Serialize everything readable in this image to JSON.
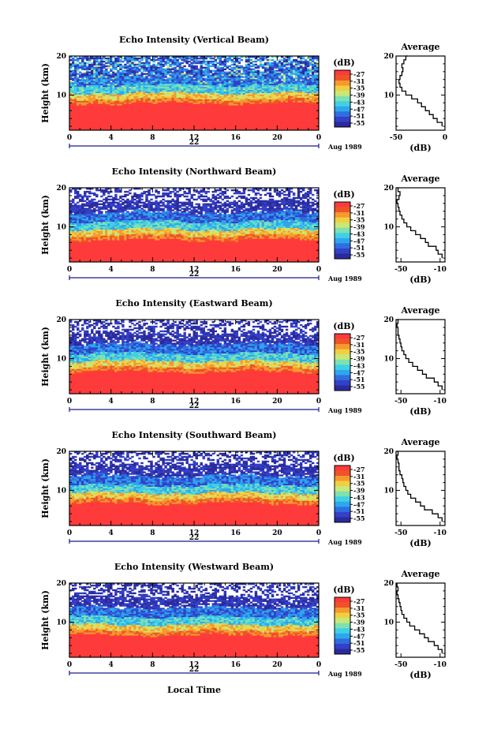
{
  "figure": {
    "xlabel": "Local Time",
    "date_label": "Aug 1989",
    "day_label": "22",
    "colorbar_unit": "(dB)",
    "colorbar_ticks": [
      "-27",
      "-31",
      "-35",
      "-39",
      "-43",
      "-47",
      "-51",
      "-55"
    ],
    "colors": [
      "#2b2a9c",
      "#3340c8",
      "#2e6fe0",
      "#2ea6ee",
      "#3fd0e6",
      "#7fe0b0",
      "#c8e87a",
      "#f0d040",
      "#f59a2e",
      "#ee5428",
      "#ff3a3a"
    ]
  },
  "chart_data": [
    {
      "type": "heatmap",
      "title": "Echo Intensity (Vertical Beam)",
      "ylabel": "Height (km)",
      "xlim": [
        0,
        24
      ],
      "ylim": [
        1,
        20
      ],
      "x_ticks": [
        "0",
        "4",
        "8",
        "12",
        "16",
        "20",
        "0"
      ],
      "y_ticks": [
        "10",
        "20"
      ],
      "clim": [
        -55,
        -27
      ],
      "profile": {
        "title": "Average",
        "xlabel": "(dB)",
        "x_ticks": [
          "-50",
          "0"
        ],
        "xlim": [
          -50,
          0
        ],
        "heights": [
          2,
          3,
          4,
          5,
          6,
          7,
          8,
          9,
          10,
          11,
          12,
          13,
          14,
          15,
          16,
          17,
          18,
          19,
          20
        ],
        "values": [
          -3,
          -8,
          -12,
          -16,
          -20,
          -24,
          -28,
          -34,
          -40,
          -44,
          -46,
          -47,
          -46,
          -44,
          -43,
          -44,
          -42,
          -40,
          -38
        ]
      }
    },
    {
      "type": "heatmap",
      "title": "Echo Intensity (Northward Beam)",
      "ylabel": "Height (km)",
      "xlim": [
        0,
        24
      ],
      "ylim": [
        1,
        20
      ],
      "x_ticks": [
        "0",
        "4",
        "8",
        "12",
        "16",
        "20",
        "0"
      ],
      "y_ticks": [
        "10",
        "20"
      ],
      "clim": [
        -55,
        -27
      ],
      "profile": {
        "title": "Average",
        "xlabel": "(dB)",
        "x_ticks": [
          "-50",
          "-10"
        ],
        "xlim": [
          -55,
          -5
        ],
        "heights": [
          2,
          3,
          4,
          5,
          6,
          7,
          8,
          9,
          10,
          11,
          12,
          13,
          14,
          15,
          16,
          17,
          18,
          19,
          20
        ],
        "values": [
          -8,
          -12,
          -14,
          -22,
          -25,
          -30,
          -35,
          -40,
          -44,
          -47,
          -49,
          -51,
          -52,
          -53,
          -54,
          -52,
          -51,
          -53,
          -52
        ]
      }
    },
    {
      "type": "heatmap",
      "title": "Echo Intensity (Eastward Beam)",
      "ylabel": "Height (km)",
      "xlim": [
        0,
        24
      ],
      "ylim": [
        1,
        20
      ],
      "x_ticks": [
        "0",
        "4",
        "8",
        "12",
        "16",
        "20",
        "0"
      ],
      "y_ticks": [
        "10",
        "20"
      ],
      "clim": [
        -55,
        -27
      ],
      "profile": {
        "title": "Average",
        "xlabel": "(dB)",
        "x_ticks": [
          "-50",
          "-10"
        ],
        "xlim": [
          -55,
          -5
        ],
        "heights": [
          2,
          3,
          4,
          5,
          6,
          7,
          8,
          9,
          10,
          11,
          12,
          13,
          14,
          15,
          16,
          17,
          18,
          19,
          20
        ],
        "values": [
          -8,
          -12,
          -16,
          -24,
          -28,
          -33,
          -38,
          -42,
          -45,
          -47,
          -49,
          -50,
          -51,
          -52,
          -53,
          -53,
          -54,
          -53,
          -54
        ]
      }
    },
    {
      "type": "heatmap",
      "title": "Echo Intensity (Southward Beam)",
      "ylabel": "Height (km)",
      "xlim": [
        0,
        24
      ],
      "ylim": [
        1,
        20
      ],
      "x_ticks": [
        "0",
        "4",
        "8",
        "12",
        "16",
        "20",
        "0"
      ],
      "y_ticks": [
        "10",
        "20"
      ],
      "clim": [
        -55,
        -27
      ],
      "profile": {
        "title": "Average",
        "xlabel": "(dB)",
        "x_ticks": [
          "-50",
          "-10"
        ],
        "xlim": [
          -55,
          -5
        ],
        "heights": [
          2,
          3,
          4,
          5,
          6,
          7,
          8,
          9,
          10,
          11,
          12,
          13,
          14,
          15,
          16,
          17,
          18,
          19,
          20
        ],
        "values": [
          -8,
          -12,
          -18,
          -26,
          -30,
          -35,
          -40,
          -43,
          -45,
          -47,
          -48,
          -49,
          -51,
          -52,
          -52,
          -53,
          -54,
          -53,
          -54
        ]
      }
    },
    {
      "type": "heatmap",
      "title": "Echo Intensity (Westward Beam)",
      "ylabel": "Height (km)",
      "xlim": [
        0,
        24
      ],
      "ylim": [
        1,
        20
      ],
      "x_ticks": [
        "0",
        "4",
        "8",
        "12",
        "16",
        "20",
        "0"
      ],
      "y_ticks": [
        "10",
        "20"
      ],
      "clim": [
        -55,
        -27
      ],
      "profile": {
        "title": "Average",
        "xlabel": "(dB)",
        "x_ticks": [
          "-50",
          "-10"
        ],
        "xlim": [
          -55,
          -5
        ],
        "heights": [
          2,
          3,
          4,
          5,
          6,
          7,
          8,
          9,
          10,
          11,
          12,
          13,
          14,
          15,
          16,
          17,
          18,
          19,
          20
        ],
        "values": [
          -8,
          -12,
          -16,
          -22,
          -26,
          -31,
          -36,
          -41,
          -44,
          -47,
          -49,
          -50,
          -51,
          -52,
          -53,
          -54,
          -53,
          -54,
          -54
        ]
      }
    }
  ]
}
